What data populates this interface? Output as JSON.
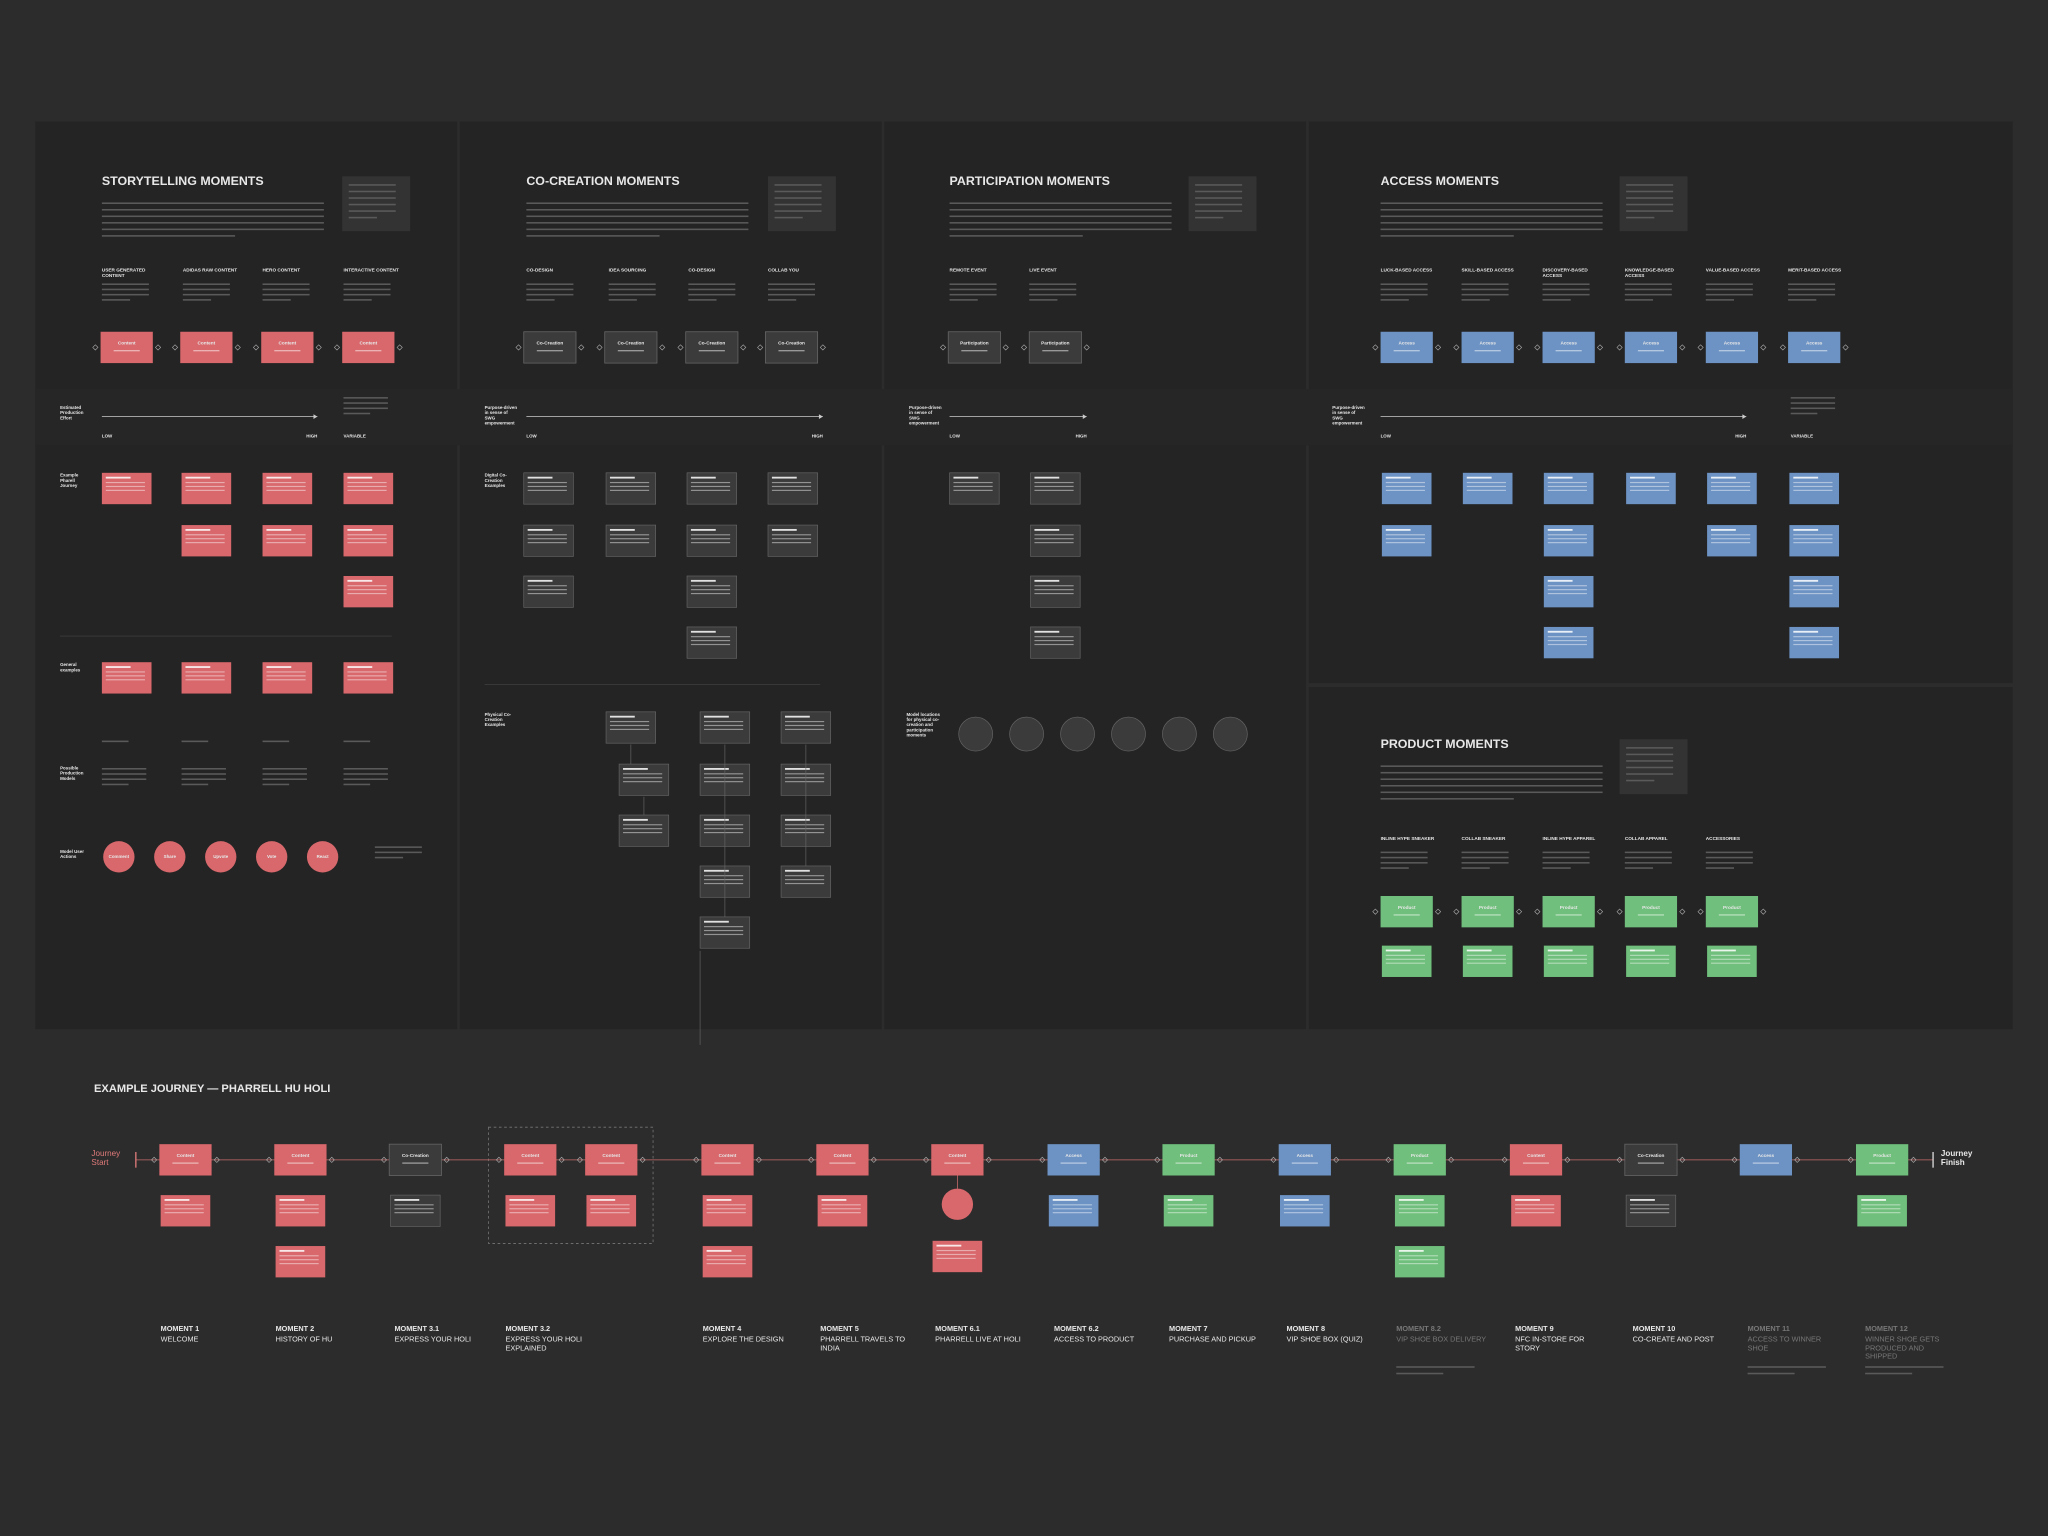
{
  "sections": [
    {
      "title": "STORYTELLING MOMENTS",
      "columns": [
        "USER GENERATED CONTENT",
        "ADIDAS RAW CONTENT",
        "HERO CONTENT",
        "INTERACTIVE CONTENT"
      ],
      "node_label": "Content",
      "axis": {
        "caption": "Estimated Production Effort",
        "low": "LOW",
        "high": "HIGH",
        "variable": "VARIABLE"
      },
      "row_labels": [
        "Example Pharell Journey",
        "General examples",
        "Possible Production Models",
        "Model User Actions"
      ],
      "actions": [
        "Comment",
        "Share",
        "Upvote",
        "Vote",
        "React"
      ]
    },
    {
      "title": "CO-CREATION MOMENTS",
      "columns": [
        "CO-DESIGN",
        "IDEA SOURCING",
        "CO-DESIGN",
        "COLLAB YOU"
      ],
      "node_label": "Co-Creation",
      "axis": {
        "caption": "Purpose-driven in sense of SWG empowerment",
        "low": "LOW",
        "high": "HIGH"
      },
      "row_labels": [
        "Digital Co-Creation Examples",
        "Physical Co-Creation Examples"
      ]
    },
    {
      "title": "PARTICIPATION MOMENTS",
      "columns": [
        "REMOTE EVENT",
        "LIVE EVENT"
      ],
      "node_label": "Participation",
      "axis": {
        "caption": "Purpose-driven in sense of SWG empowerment",
        "low": "LOW",
        "high": "HIGH"
      },
      "row_labels": [
        "Model locations for physical co-creation and participation moments"
      ]
    },
    {
      "title": "ACCESS MOMENTS",
      "columns": [
        "LUCK-BASED ACCESS",
        "SKILL-BASED ACCESS",
        "DISCOVERY-BASED ACCESS",
        "KNOWLEDGE-BASED ACCESS",
        "VALUE-BASED ACCESS",
        "MERIT-BASED ACCESS"
      ],
      "node_label": "Access",
      "axis": {
        "caption": "Purpose-driven in sense of SWG empowerment",
        "low": "LOW",
        "high": "HIGH",
        "variable": "VARIABLE"
      }
    },
    {
      "title": "PRODUCT MOMENTS",
      "columns": [
        "INLINE HYPE SNEAKER",
        "COLLAB SNEAKER",
        "INLINE HYPE APPAREL",
        "COLLAB APPAREL",
        "ACCESSORIES"
      ],
      "node_label": "Product"
    }
  ],
  "journey": {
    "title": "EXAMPLE JOURNEY — PHARRELL HU HOLI",
    "start": "Journey Start",
    "finish": "Journey Finish",
    "nodes": [
      "Content",
      "Content",
      "Co-Creation",
      "Content",
      "Content",
      "Content",
      "Content",
      "Content",
      "Access",
      "Product",
      "Access",
      "Product",
      "Content",
      "Co-Creation",
      "Access",
      "Product"
    ],
    "moments": [
      {
        "number": "MOMENT 1",
        "name": "WELCOME"
      },
      {
        "number": "MOMENT 2",
        "name": "HISTORY OF HU"
      },
      {
        "number": "MOMENT 3.1",
        "name": "EXPRESS YOUR HOLI"
      },
      {
        "number": "MOMENT 3.2",
        "name": "EXPRESS YOUR HOLI EXPLAINED"
      },
      {
        "number": "MOMENT 4",
        "name": "EXPLORE THE DESIGN"
      },
      {
        "number": "MOMENT 5",
        "name": "PHARRELL TRAVELS TO INDIA"
      },
      {
        "number": "MOMENT 6.1",
        "name": "PHARRELL LIVE AT HOLI"
      },
      {
        "number": "MOMENT 6.2",
        "name": "ACCESS TO PRODUCT"
      },
      {
        "number": "MOMENT 7",
        "name": "PURCHASE AND PICKUP"
      },
      {
        "number": "MOMENT 8",
        "name": "VIP SHOE BOX (QUIZ)"
      },
      {
        "number": "MOMENT 8.2",
        "name": "VIP SHOE BOX DELIVERY"
      },
      {
        "number": "MOMENT 9",
        "name": "NFC IN-STORE FOR STORY"
      },
      {
        "number": "MOMENT 10",
        "name": "CO-CREATE AND POST"
      },
      {
        "number": "MOMENT 11",
        "name": "ACCESS TO WINNER SHOE"
      },
      {
        "number": "MOMENT 12",
        "name": "WINNER SHOE GETS PRODUCED AND SHIPPED"
      }
    ]
  }
}
